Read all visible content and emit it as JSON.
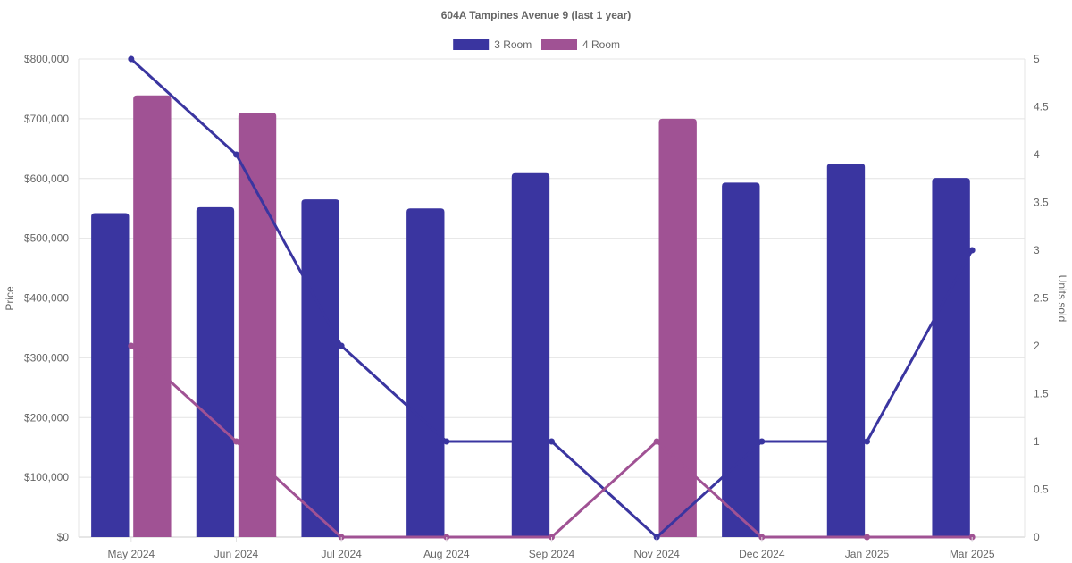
{
  "chart_data": {
    "type": "bar",
    "title": "604A Tampines Avenue 9 (last 1 year)",
    "categories": [
      "May 2024",
      "Jun 2024",
      "Jul 2024",
      "Aug 2024",
      "Sep 2024",
      "Nov 2024",
      "Dec 2024",
      "Jan 2025",
      "Mar 2025"
    ],
    "ylabel": "Price",
    "y2label": "Units sold",
    "ylim": [
      0,
      800000
    ],
    "y2lim": [
      0,
      5
    ],
    "yticks": [
      "$0",
      "$100,000",
      "$200,000",
      "$300,000",
      "$400,000",
      "$500,000",
      "$600,000",
      "$700,000",
      "$800,000"
    ],
    "y2ticks": [
      "0",
      "0.5",
      "1",
      "1.5",
      "2",
      "2.5",
      "3",
      "3.5",
      "4",
      "4.5",
      "5"
    ],
    "grid": true,
    "legend_position": "top",
    "series": [
      {
        "name": "3 Room",
        "kind": "bar",
        "axis": "left",
        "color": "#3a35a0",
        "values": [
          542000,
          552000,
          565000,
          550000,
          609000,
          null,
          593000,
          625000,
          601000
        ]
      },
      {
        "name": "4 Room",
        "kind": "bar",
        "axis": "left",
        "color": "#a05294",
        "values": [
          739000,
          710000,
          null,
          null,
          null,
          700000,
          null,
          null,
          null
        ]
      },
      {
        "name": "3 Room",
        "kind": "line",
        "axis": "right",
        "color": "#3a35a0",
        "legend": false,
        "values": [
          5,
          4,
          2,
          1,
          1,
          0,
          1,
          1,
          3
        ]
      },
      {
        "name": "4 Room",
        "kind": "line",
        "axis": "right",
        "color": "#a05294",
        "legend": false,
        "values": [
          2,
          1,
          0,
          0,
          0,
          1,
          0,
          0,
          0
        ]
      }
    ]
  }
}
